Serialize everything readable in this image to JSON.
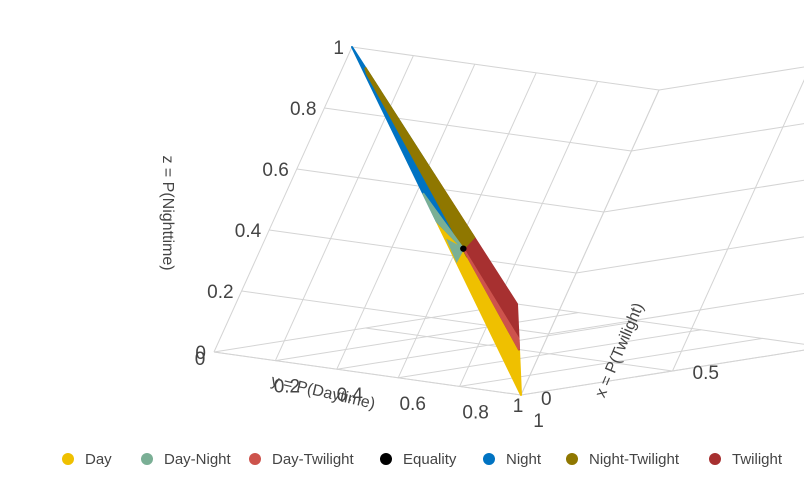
{
  "chart_data": {
    "type": "scatter3d-ternary",
    "axes": {
      "x": {
        "label": "x = P(Twilight)",
        "range": [
          0,
          1
        ],
        "ticks": [
          "0",
          "0.5",
          "1"
        ]
      },
      "y": {
        "label": "y = P(Daytime)",
        "range": [
          0,
          1
        ],
        "ticks": [
          "0",
          "0.2",
          "0.4",
          "0.6",
          "0.8",
          "1"
        ]
      },
      "z": {
        "label": "z = P(Nighttime)",
        "range": [
          0,
          1
        ],
        "ticks": [
          "0",
          "0.2",
          "0.4",
          "0.6",
          "0.8",
          "1"
        ]
      }
    },
    "grid": true,
    "legend_position": "bottom",
    "series": [
      {
        "name": "Day",
        "color": "#efc000",
        "region": [
          [
            0,
            1,
            0
          ],
          [
            0.5,
            0.5,
            0
          ],
          [
            0.333,
            0.333,
            0.333
          ],
          [
            0,
            0.5,
            0.5
          ]
        ]
      },
      {
        "name": "Day-Night",
        "color": "#7aaf95",
        "region": [
          [
            0,
            0.5,
            0.5
          ],
          [
            0.333,
            0.333,
            0.333
          ]
        ]
      },
      {
        "name": "Day-Twilight",
        "color": "#cd534c",
        "region": [
          [
            0.5,
            0.5,
            0
          ],
          [
            0.333,
            0.333,
            0.333
          ]
        ]
      },
      {
        "name": "Equality",
        "color": "#000000",
        "points": [
          [
            0.333,
            0.333,
            0.333
          ]
        ]
      },
      {
        "name": "Night",
        "color": "#0073c2",
        "region": [
          [
            0,
            0,
            1
          ],
          [
            0,
            0.5,
            0.5
          ],
          [
            0.333,
            0.333,
            0.333
          ],
          [
            0.5,
            0,
            0.5
          ]
        ]
      },
      {
        "name": "Night-Twilight",
        "color": "#8f7700",
        "region": [
          [
            0.5,
            0,
            0.5
          ],
          [
            0.333,
            0.333,
            0.333
          ]
        ]
      },
      {
        "name": "Twilight",
        "color": "#a73030",
        "region": [
          [
            1,
            0,
            0
          ],
          [
            0.5,
            0,
            0.5
          ],
          [
            0.333,
            0.333,
            0.333
          ],
          [
            0.5,
            0.5,
            0
          ]
        ]
      }
    ]
  }
}
